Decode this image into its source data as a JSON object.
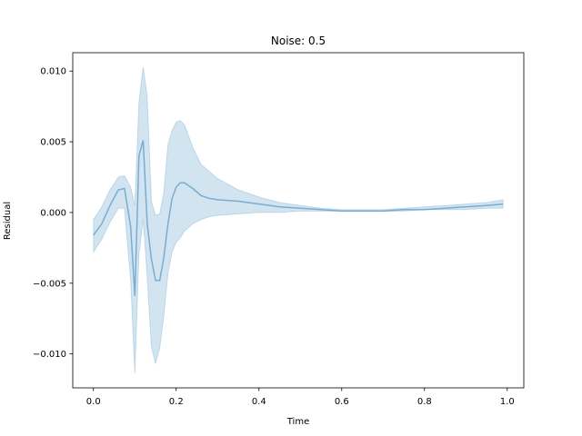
{
  "chart_data": {
    "type": "line",
    "title": "Noise: 0.5",
    "xlabel": "Time",
    "ylabel": "Residual",
    "xlim": [
      -0.05,
      1.04
    ],
    "ylim": [
      -0.0124,
      0.0113
    ],
    "xticks": [
      0.0,
      0.2,
      0.4,
      0.6,
      0.8,
      1.0
    ],
    "xtick_labels": [
      "0.0",
      "0.2",
      "0.4",
      "0.6",
      "0.8",
      "1.0"
    ],
    "yticks": [
      -0.01,
      -0.005,
      0.0,
      0.005,
      0.01
    ],
    "ytick_labels": [
      "−0.010",
      "−0.005",
      "0.000",
      "0.005",
      "0.010"
    ],
    "grid": false,
    "colors": {
      "line": "#1f77b4",
      "band": "#1f77b4"
    },
    "series": [
      {
        "x": [
          0.0,
          0.02,
          0.04,
          0.06,
          0.075,
          0.09,
          0.1,
          0.11,
          0.12,
          0.13,
          0.14,
          0.15,
          0.16,
          0.17,
          0.18,
          0.19,
          0.2,
          0.21,
          0.22,
          0.24,
          0.26,
          0.28,
          0.3,
          0.35,
          0.4,
          0.45,
          0.5,
          0.55,
          0.6,
          0.65,
          0.7,
          0.75,
          0.8,
          0.85,
          0.9,
          0.95,
          0.99
        ],
        "y": [
          -0.0016,
          -0.0008,
          0.0005,
          0.0016,
          0.0017,
          -0.001,
          -0.0059,
          0.004,
          0.0051,
          -0.0008,
          -0.0033,
          -0.0048,
          -0.0048,
          -0.0032,
          -0.0008,
          0.001,
          0.0018,
          0.0021,
          0.0021,
          0.0017,
          0.0012,
          0.001,
          0.0009,
          0.0008,
          0.0006,
          0.0004,
          0.0003,
          0.0002,
          0.0001,
          0.0001,
          0.0001,
          0.0002,
          0.0002,
          0.0003,
          0.0004,
          0.0005,
          0.0006
        ],
        "lower": [
          -0.0028,
          -0.0019,
          -0.0007,
          0.0003,
          0.0003,
          -0.0048,
          -0.0114,
          -0.003,
          -0.0005,
          -0.0046,
          -0.0095,
          -0.0107,
          -0.0096,
          -0.0073,
          -0.0043,
          -0.0028,
          -0.0021,
          -0.0018,
          -0.0013,
          -0.0008,
          -0.0005,
          -0.0003,
          -0.0002,
          -0.0001,
          0.0,
          0.0,
          0.0001,
          0.0001,
          0.0001,
          0.0001,
          0.0001,
          0.0001,
          0.0002,
          0.0002,
          0.0002,
          0.0003,
          0.0003
        ],
        "upper": [
          -0.0005,
          0.0004,
          0.0016,
          0.0025,
          0.0026,
          0.0018,
          0.0005,
          0.0078,
          0.0103,
          0.0082,
          0.0008,
          -0.0002,
          -0.0001,
          0.0014,
          0.0048,
          0.0058,
          0.0064,
          0.0065,
          0.0062,
          0.0046,
          0.0034,
          0.0029,
          0.0024,
          0.0016,
          0.0011,
          0.0007,
          0.0005,
          0.0003,
          0.0002,
          0.0002,
          0.0002,
          0.0003,
          0.0004,
          0.0005,
          0.0006,
          0.0007,
          0.0009
        ]
      }
    ]
  }
}
